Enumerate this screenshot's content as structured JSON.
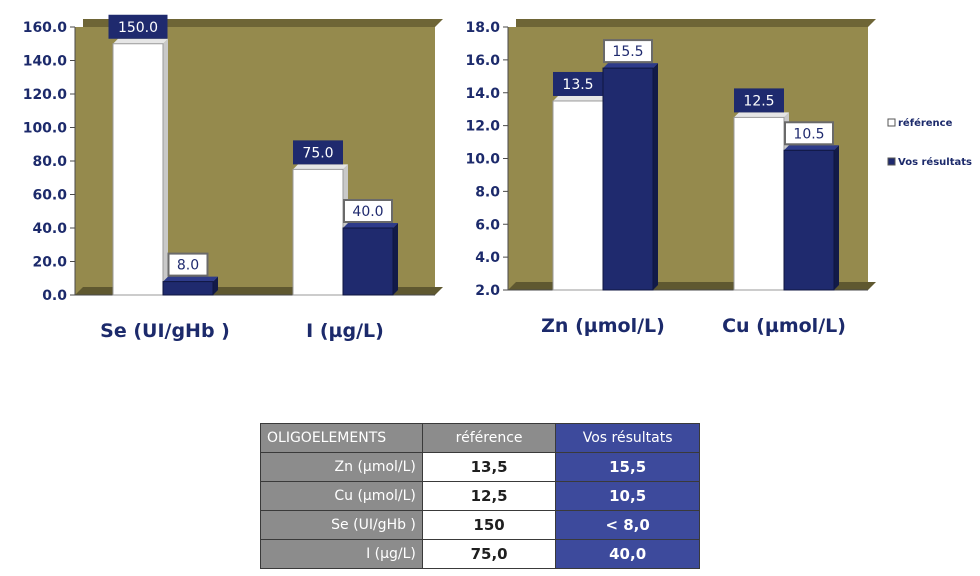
{
  "colors": {
    "plot_bg": "#958a4d",
    "reference": "#ffffff",
    "results": "#1f2a6e",
    "axis_text": "#1c2a6b"
  },
  "chart_data": [
    {
      "type": "bar",
      "categories": [
        "Se (UI/gHb )",
        "I (µg/L)"
      ],
      "series": [
        {
          "name": "référence",
          "values": [
            150.0,
            75.0
          ]
        },
        {
          "name": "Vos résultats",
          "values": [
            8.0,
            40.0
          ]
        }
      ],
      "yticks": [
        "0.0",
        "20.0",
        "40.0",
        "60.0",
        "80.0",
        "100.0",
        "120.0",
        "140.0",
        "160.0"
      ],
      "data_labels": [
        [
          "150.0",
          "75.0"
        ],
        [
          "8.0",
          "40.0"
        ]
      ],
      "ylim": [
        0,
        160
      ],
      "grid": false
    },
    {
      "type": "bar",
      "categories": [
        "Zn (µmol/L)",
        "Cu (µmol/L)"
      ],
      "series": [
        {
          "name": "référence",
          "values": [
            13.5,
            12.5
          ]
        },
        {
          "name": "Vos résultats",
          "values": [
            15.5,
            10.5
          ]
        }
      ],
      "yticks": [
        "2.0",
        "4.0",
        "6.0",
        "8.0",
        "10.0",
        "12.0",
        "14.0",
        "16.0",
        "18.0"
      ],
      "data_labels": [
        [
          "13.5",
          "12.5"
        ],
        [
          "15.5",
          "10.5"
        ]
      ],
      "ylim": [
        2,
        18
      ],
      "grid": false,
      "legend": {
        "position": "right",
        "entries": [
          "référence",
          "Vos résultats"
        ]
      }
    }
  ],
  "table": {
    "headers": [
      "OLIGOELEMENTS",
      "référence",
      "Vos résultats"
    ],
    "rows": [
      [
        "Zn (µmol/L)",
        "13,5",
        "15,5"
      ],
      [
        "Cu (µmol/L)",
        "12,5",
        "10,5"
      ],
      [
        "Se (UI/gHb )",
        "150",
        "< 8,0"
      ],
      [
        "I (µg/L)",
        "75,0",
        "40,0"
      ]
    ]
  }
}
